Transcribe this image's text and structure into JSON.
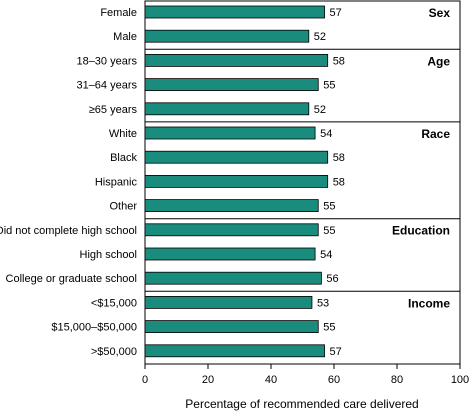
{
  "chart_data": {
    "type": "bar",
    "orientation": "horizontal",
    "xlabel": "Percentage of recommended care delivered",
    "xlim": [
      0,
      100
    ],
    "xticks": [
      "0",
      "20",
      "40",
      "60",
      "80",
      "100"
    ],
    "bar_color": "#1a8c7e",
    "groups": [
      {
        "title": "Sex",
        "items": [
          {
            "label": "Female",
            "value": 57
          },
          {
            "label": "Male",
            "value": 52
          }
        ]
      },
      {
        "title": "Age",
        "items": [
          {
            "label": "18–30 years",
            "value": 58
          },
          {
            "label": "31–64 years",
            "value": 55
          },
          {
            "label": "≥65 years",
            "value": 52
          }
        ]
      },
      {
        "title": "Race",
        "items": [
          {
            "label": "White",
            "value": 54
          },
          {
            "label": "Black",
            "value": 58
          },
          {
            "label": "Hispanic",
            "value": 58
          },
          {
            "label": "Other",
            "value": 55
          }
        ]
      },
      {
        "title": "Education",
        "items": [
          {
            "label": "Did not complete high school",
            "value": 55
          },
          {
            "label": "High school",
            "value": 54
          },
          {
            "label": "College or graduate school",
            "value": 56
          }
        ]
      },
      {
        "title": "Income",
        "items": [
          {
            "label": "<$15,000",
            "value": 53
          },
          {
            "label": "$15,000–$50,000",
            "value": 55
          },
          {
            "label": ">$50,000",
            "value": 57
          }
        ]
      }
    ]
  }
}
